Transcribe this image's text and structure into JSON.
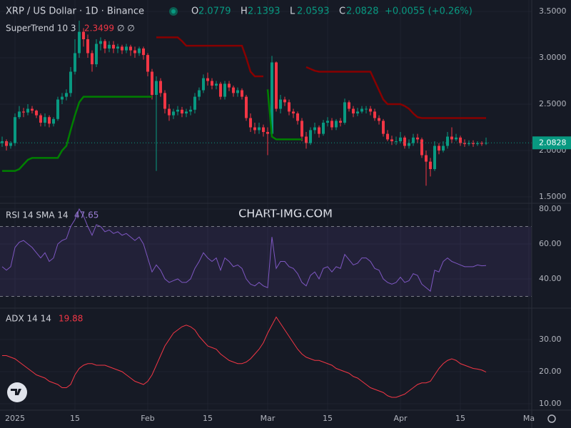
{
  "header": {
    "symbol": "XRP / US Dollar · 1D · Binance",
    "ohlc": [
      {
        "label": "O",
        "value": "2.0779"
      },
      {
        "label": "H",
        "value": "2.1393"
      },
      {
        "label": "L",
        "value": "2.0593"
      },
      {
        "label": "C",
        "value": "2.0828"
      }
    ],
    "change": "+0.0055 (+0.26%)"
  },
  "watermark": "CHART-IMG.COM",
  "xaxis": {
    "ticks": [
      {
        "value": 3,
        "label": "2025"
      },
      {
        "value": 17,
        "label": "15"
      },
      {
        "value": 34,
        "label": "Feb"
      },
      {
        "value": 48,
        "label": "15"
      },
      {
        "value": 62,
        "label": "Mar"
      },
      {
        "value": 76,
        "label": "15"
      },
      {
        "value": 93,
        "label": "Apr"
      },
      {
        "value": 107,
        "label": "15"
      },
      {
        "value": 123,
        "label": "Ma"
      }
    ]
  },
  "chart_data": [
    {
      "type": "candlestick",
      "legend": "SuperTrend 10 3",
      "legend_value": "2.3499",
      "up_color": "#089981",
      "down_color": "#f23645",
      "open": [
        2.08,
        2.1,
        2.05,
        2.08,
        2.36,
        2.42,
        2.41,
        2.45,
        2.43,
        2.38,
        2.3,
        2.36,
        2.29,
        2.34,
        2.55,
        2.58,
        2.62,
        2.85,
        3.05,
        3.28,
        3.2,
        3.05,
        2.93,
        3.15,
        3.18,
        3.1,
        3.14,
        3.1,
        3.12,
        3.08,
        3.12,
        3.08,
        3.05,
        3.1,
        3.03,
        2.85,
        2.6,
        2.75,
        2.62,
        2.45,
        2.38,
        2.42,
        2.44,
        2.4,
        2.42,
        2.44,
        2.58,
        2.65,
        2.78,
        2.75,
        2.7,
        2.72,
        2.58,
        2.72,
        2.68,
        2.62,
        2.65,
        2.58,
        2.35,
        2.25,
        2.22,
        2.25,
        2.2,
        2.18,
        2.95,
        2.45,
        2.55,
        2.52,
        2.42,
        2.4,
        2.32,
        2.15,
        2.08,
        2.22,
        2.25,
        2.18,
        2.3,
        2.32,
        2.25,
        2.32,
        2.3,
        2.52,
        2.45,
        2.4,
        2.42,
        2.45,
        2.45,
        2.42,
        2.35,
        2.32,
        2.18,
        2.12,
        2.1,
        2.1,
        2.14,
        2.05,
        2.08,
        2.14,
        2.12,
        1.95,
        1.88,
        1.8,
        2.05,
        2.0,
        2.05,
        2.15,
        2.12,
        2.14,
        2.08,
        2.07,
        2.08,
        2.07,
        2.08,
        2.0779
      ],
      "high": [
        2.15,
        2.12,
        2.1,
        2.4,
        2.48,
        2.46,
        2.5,
        2.48,
        2.44,
        2.4,
        2.4,
        2.38,
        2.36,
        2.58,
        2.62,
        2.66,
        2.9,
        3.2,
        3.4,
        3.32,
        3.25,
        3.08,
        3.2,
        3.22,
        3.2,
        3.18,
        3.18,
        3.15,
        3.14,
        3.15,
        3.14,
        3.12,
        3.12,
        3.12,
        3.05,
        2.88,
        2.8,
        2.78,
        2.65,
        2.5,
        2.45,
        2.48,
        2.47,
        2.45,
        2.48,
        2.62,
        2.68,
        2.82,
        2.84,
        2.78,
        2.75,
        2.74,
        2.75,
        2.75,
        2.7,
        2.68,
        2.67,
        2.6,
        2.4,
        2.3,
        2.3,
        2.28,
        2.25,
        3.02,
        2.96,
        2.6,
        2.58,
        2.55,
        2.45,
        2.42,
        2.35,
        2.2,
        2.25,
        2.3,
        2.27,
        2.33,
        2.36,
        2.35,
        2.34,
        2.35,
        2.56,
        2.54,
        2.48,
        2.46,
        2.48,
        2.48,
        2.48,
        2.45,
        2.38,
        2.34,
        2.22,
        2.16,
        2.15,
        2.2,
        2.16,
        2.12,
        2.18,
        2.18,
        2.14,
        2.0,
        1.92,
        2.1,
        2.08,
        2.1,
        2.2,
        2.25,
        2.18,
        2.16,
        2.12,
        2.11,
        2.11,
        2.1,
        2.1,
        2.1393
      ],
      "low": [
        2.04,
        2.0,
        2.02,
        2.05,
        2.34,
        2.36,
        2.38,
        2.4,
        2.35,
        2.26,
        2.26,
        2.25,
        2.26,
        2.32,
        2.5,
        2.54,
        2.58,
        2.82,
        3.0,
        3.12,
        3.0,
        2.85,
        2.9,
        3.08,
        3.05,
        3.06,
        3.05,
        3.05,
        3.04,
        3.05,
        3.02,
        3.0,
        3.02,
        2.98,
        2.8,
        2.55,
        1.78,
        2.58,
        2.4,
        2.32,
        2.34,
        2.38,
        2.36,
        2.36,
        2.38,
        2.4,
        2.54,
        2.62,
        2.7,
        2.66,
        2.66,
        2.55,
        2.55,
        2.64,
        2.58,
        2.58,
        2.55,
        2.32,
        2.2,
        2.18,
        2.18,
        2.15,
        1.95,
        2.15,
        2.42,
        2.4,
        2.48,
        2.38,
        2.35,
        2.28,
        2.1,
        2.02,
        2.06,
        2.18,
        2.14,
        2.16,
        2.26,
        2.22,
        2.22,
        2.26,
        2.28,
        2.42,
        2.36,
        2.37,
        2.4,
        2.4,
        2.38,
        2.32,
        2.28,
        2.15,
        2.1,
        2.06,
        2.06,
        2.08,
        2.02,
        2.02,
        2.05,
        2.08,
        1.92,
        1.62,
        1.72,
        1.78,
        1.96,
        1.98,
        2.02,
        2.08,
        2.1,
        2.05,
        2.04,
        2.05,
        2.04,
        2.05,
        2.05,
        2.0593
      ],
      "close": [
        2.1,
        2.05,
        2.08,
        2.36,
        2.42,
        2.41,
        2.45,
        2.43,
        2.38,
        2.3,
        2.36,
        2.29,
        2.34,
        2.55,
        2.58,
        2.62,
        2.85,
        3.05,
        3.28,
        3.2,
        3.05,
        2.93,
        3.15,
        3.18,
        3.1,
        3.14,
        3.1,
        3.12,
        3.08,
        3.12,
        3.08,
        3.05,
        3.1,
        3.03,
        2.85,
        2.6,
        2.75,
        2.62,
        2.45,
        2.38,
        2.42,
        2.44,
        2.4,
        2.42,
        2.44,
        2.58,
        2.65,
        2.78,
        2.75,
        2.7,
        2.72,
        2.58,
        2.72,
        2.68,
        2.62,
        2.65,
        2.58,
        2.35,
        2.25,
        2.22,
        2.25,
        2.2,
        2.18,
        2.95,
        2.45,
        2.55,
        2.52,
        2.42,
        2.4,
        2.32,
        2.15,
        2.08,
        2.22,
        2.25,
        2.18,
        2.3,
        2.32,
        2.25,
        2.32,
        2.3,
        2.52,
        2.45,
        2.4,
        2.42,
        2.45,
        2.45,
        2.42,
        2.35,
        2.32,
        2.18,
        2.12,
        2.1,
        2.1,
        2.14,
        2.05,
        2.08,
        2.14,
        2.12,
        1.95,
        1.88,
        1.8,
        2.05,
        2.0,
        2.05,
        2.15,
        2.12,
        2.14,
        2.08,
        2.07,
        2.08,
        2.07,
        2.08,
        2.0773,
        2.0828
      ],
      "supertrend": {
        "up_color": "#008000",
        "down_color": "#880000",
        "up_values": [
          1.78,
          1.78,
          1.78,
          1.78,
          1.8,
          1.85,
          1.9,
          1.92,
          1.92,
          1.92,
          1.92,
          1.92,
          1.92,
          1.92,
          2.0,
          2.05,
          2.22,
          2.38,
          2.52,
          2.58,
          2.58,
          2.58,
          2.58,
          2.58,
          2.58,
          2.58,
          2.58,
          2.58,
          2.58,
          2.58,
          2.58,
          2.58,
          2.58,
          2.58,
          2.58,
          2.58,
          null,
          null,
          null,
          null,
          null,
          null,
          null,
          null,
          null,
          null,
          null,
          null,
          null,
          null,
          null,
          null,
          null,
          null,
          null,
          null,
          null,
          null,
          null,
          null,
          null,
          null,
          2.66,
          2.15,
          2.12,
          2.12,
          2.12,
          2.12,
          2.12,
          2.12,
          2.12,
          null,
          null,
          null,
          null,
          null,
          null,
          null,
          null,
          null,
          null,
          null,
          null,
          null,
          null,
          null,
          null,
          null,
          null,
          null,
          null,
          null,
          null,
          null,
          null,
          null,
          null,
          null,
          null,
          null,
          null,
          null,
          null,
          null,
          null,
          null,
          null,
          null,
          null,
          null,
          null,
          null,
          null
        ],
        "down_values": [
          null,
          null,
          null,
          null,
          null,
          null,
          null,
          null,
          null,
          null,
          null,
          null,
          null,
          null,
          null,
          null,
          null,
          null,
          null,
          null,
          null,
          null,
          null,
          null,
          null,
          null,
          null,
          null,
          null,
          null,
          null,
          null,
          null,
          null,
          null,
          null,
          3.22,
          3.22,
          3.22,
          3.22,
          3.22,
          3.22,
          3.18,
          3.13,
          3.13,
          3.13,
          3.13,
          3.13,
          3.13,
          3.13,
          3.13,
          3.13,
          3.13,
          3.13,
          3.13,
          3.13,
          3.13,
          3.0,
          2.85,
          2.8,
          2.8,
          2.8,
          null,
          null,
          null,
          null,
          null,
          null,
          null,
          null,
          null,
          2.9,
          2.88,
          2.86,
          2.85,
          2.85,
          2.85,
          2.85,
          2.85,
          2.85,
          2.85,
          2.85,
          2.85,
          2.85,
          2.85,
          2.85,
          2.85,
          2.75,
          2.65,
          2.55,
          2.5,
          2.5,
          2.5,
          2.5,
          2.48,
          2.45,
          2.4,
          2.36,
          2.35,
          2.35,
          2.35,
          2.35,
          2.35,
          2.35,
          2.35,
          2.35,
          2.35,
          2.35,
          2.35,
          2.35,
          2.35,
          2.35,
          2.35,
          2.35
        ]
      },
      "last_price_label": "2.0828",
      "ylim": [
        1.431,
        3.623
      ],
      "yticks": [
        {
          "value": 3.5,
          "label": "3.5000"
        },
        {
          "value": 3,
          "label": "3.0000"
        },
        {
          "value": 2.5,
          "label": "2.5000"
        },
        {
          "value": 2,
          "label": "2.0000"
        },
        {
          "value": 1.5,
          "label": "1.5000"
        }
      ],
      "grid": true
    },
    {
      "type": "line",
      "legend": "RSI 14 SMA 14",
      "legend_value": "47.65",
      "color": "#7e57c2",
      "bands": [
        30,
        70
      ],
      "values": [
        47,
        45,
        47,
        58,
        61,
        62,
        60,
        58,
        55,
        52,
        55,
        50,
        52,
        60,
        62,
        63,
        70,
        74,
        80,
        76,
        70,
        65,
        71,
        70,
        67,
        68,
        66,
        67,
        65,
        66,
        64,
        62,
        64,
        60,
        52,
        44,
        48,
        45,
        40,
        38,
        39,
        40,
        38,
        38,
        40,
        46,
        50,
        55,
        52,
        50,
        52,
        45,
        52,
        50,
        47,
        48,
        46,
        40,
        37,
        36,
        38,
        36,
        35,
        64,
        46,
        50,
        50,
        47,
        46,
        43,
        38,
        36,
        42,
        44,
        40,
        46,
        47,
        44,
        47,
        46,
        54,
        51,
        48,
        49,
        52,
        52,
        50,
        46,
        45,
        40,
        38,
        37,
        38,
        41,
        38,
        39,
        43,
        42,
        37,
        35,
        33,
        45,
        44,
        50,
        52,
        50,
        49,
        48,
        47,
        47,
        47,
        48,
        47.5,
        47.65
      ],
      "ylim": [
        23.27,
        83.27
      ],
      "yticks": [
        {
          "value": 80,
          "label": "80.00"
        },
        {
          "value": 60,
          "label": "60.00"
        },
        {
          "value": 40,
          "label": "40.00"
        }
      ],
      "grid": true
    },
    {
      "type": "line",
      "legend": "ADX 14 14",
      "legend_value": "19.88",
      "color": "#f23645",
      "values": [
        25,
        25,
        24.5,
        24,
        23,
        22,
        21,
        20,
        19,
        18.5,
        18,
        17,
        16.5,
        16,
        15,
        15,
        16,
        19,
        21,
        22,
        22.5,
        22.5,
        22,
        22,
        22,
        21.5,
        21,
        20.5,
        20,
        19,
        18,
        17,
        16.5,
        16,
        17,
        19,
        22,
        25,
        28,
        30,
        32,
        33,
        34,
        34.5,
        34,
        33,
        31,
        29.5,
        28,
        27.5,
        27,
        25.5,
        24.5,
        23.5,
        23,
        22.5,
        22.5,
        23,
        24,
        25.5,
        27,
        29,
        32,
        34.5,
        37,
        35,
        33,
        31,
        29,
        27,
        25.5,
        24.5,
        24,
        23.5,
        23.5,
        23,
        22.5,
        22,
        21,
        20.5,
        20,
        19.5,
        18.5,
        18,
        17,
        16,
        15,
        14.5,
        14,
        13.5,
        12.5,
        12,
        12,
        12.5,
        13,
        14,
        15,
        16,
        16.5,
        16.5,
        17,
        19,
        21,
        22.5,
        23.5,
        24,
        23.5,
        22.5,
        22,
        21.5,
        21,
        20.8,
        20.5,
        19.88
      ],
      "ylim": [
        8,
        39.78
      ],
      "yticks": [
        {
          "value": 30,
          "label": "30.00"
        },
        {
          "value": 20,
          "label": "20.00"
        },
        {
          "value": 10,
          "label": "10.00"
        }
      ],
      "grid": true
    }
  ]
}
